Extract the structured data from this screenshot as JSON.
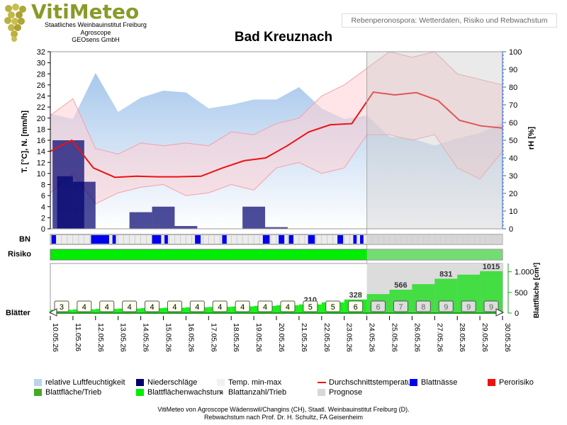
{
  "header": {
    "brand": "VitiMeteo",
    "institution_lines": [
      "Staatliches Weinbauinstitut Freiburg",
      "Agroscope",
      "GEOsens GmbH"
    ],
    "subtitle": "Rebenperonospora: Wetterdaten, Risiko und Rebwachstum",
    "title": "Bad Kreuznach"
  },
  "chart_data": {
    "type": "line",
    "title": "Bad Kreuznach",
    "dates": [
      "10.05.26",
      "11.05.26",
      "12.05.26",
      "13.05.26",
      "14.05.26",
      "15.05.26",
      "16.05.26",
      "17.05.26",
      "18.05.26",
      "19.05.26",
      "20.05.26",
      "21.05.26",
      "22.05.26",
      "23.05.26",
      "24.05.26",
      "25.05.26",
      "26.05.26",
      "27.05.26",
      "28.05.26",
      "29.05.26",
      "30.05.26"
    ],
    "forecast_from": "24.05.26",
    "ylabel_left": "T. [°C], N. [mm/h]",
    "ylabel_right": "rH [%]",
    "ylim_left": [
      0,
      32
    ],
    "yticks_left": [
      0,
      2,
      4,
      6,
      8,
      10,
      12,
      14,
      16,
      18,
      20,
      22,
      24,
      26,
      28,
      30,
      32
    ],
    "ylim_right": [
      0,
      100
    ],
    "yticks_right": [
      0,
      10,
      20,
      30,
      40,
      50,
      60,
      70,
      80,
      90,
      100
    ],
    "humidity": [
      65,
      62,
      88,
      66,
      74,
      78,
      77,
      68,
      70,
      73,
      73,
      80,
      68,
      62,
      64,
      52,
      51,
      47,
      51,
      54,
      60
    ],
    "precipitation": [
      {
        "from": 0.3,
        "to": 1.0,
        "value": 9.5
      },
      {
        "from": 0.1,
        "to": 1.5,
        "value": 16
      },
      {
        "from": 1.0,
        "to": 2.0,
        "value": 8.5
      },
      {
        "from": 3.5,
        "to": 4.5,
        "value": 3
      },
      {
        "from": 4.5,
        "to": 5.5,
        "value": 4
      },
      {
        "from": 5.5,
        "to": 6.5,
        "value": 0.5
      },
      {
        "from": 8.5,
        "to": 9.5,
        "value": 4
      },
      {
        "from": 9.5,
        "to": 10.5,
        "value": 0.3
      }
    ],
    "temp_mean": [
      14,
      16,
      11,
      9.3,
      9.5,
      9.4,
      9.4,
      9.5,
      11,
      12.3,
      12.8,
      15,
      17.5,
      18.8,
      19,
      24.7,
      24.2,
      24.6,
      23.2,
      19.6,
      18.6,
      18.2
    ],
    "temp_mean_x": [
      0,
      1,
      2,
      3,
      4,
      5,
      6,
      7,
      8,
      9,
      10,
      11,
      12,
      13,
      14,
      15,
      16,
      17,
      18,
      19,
      20,
      21
    ],
    "temp_max": [
      20.5,
      23.5,
      14.5,
      13.5,
      15.5,
      15,
      15.5,
      15,
      17.5,
      17,
      19,
      20,
      24,
      26,
      29,
      32,
      31,
      32,
      28,
      27,
      26
    ],
    "temp_min": [
      6.5,
      10,
      4.5,
      6.5,
      7.5,
      8,
      6,
      6.5,
      8,
      7,
      11,
      12,
      10,
      11,
      17,
      17,
      16,
      17,
      11,
      9,
      14
    ],
    "blattnaesse_segments": [
      [
        0.05,
        0.25
      ],
      [
        1.8,
        2.6
      ],
      [
        2.75,
        2.9
      ],
      [
        4.5,
        4.9
      ],
      [
        5.05,
        5.2
      ],
      [
        6.4,
        6.65
      ],
      [
        7.6,
        7.8
      ],
      [
        9.4,
        9.7
      ],
      [
        10.1,
        10.35
      ],
      [
        10.55,
        10.75
      ],
      [
        11.4,
        11.7
      ],
      [
        12.7,
        12.95
      ],
      [
        13.4,
        13.55
      ],
      [
        13.7,
        13.85
      ]
    ],
    "risiko_color": "#00ee00",
    "leaves_per_shoot": [
      3,
      4,
      4,
      4,
      4,
      4,
      4,
      4,
      4,
      4,
      4,
      5,
      5,
      6,
      6,
      7,
      8,
      9,
      9,
      9
    ],
    "leaf_area": [
      80,
      90,
      100,
      110,
      120,
      130,
      140,
      150,
      160,
      175,
      190,
      210,
      260,
      328,
      460,
      566,
      700,
      831,
      930,
      1015
    ],
    "leaf_area_labels": [
      {
        "index": 11,
        "text": "210"
      },
      {
        "index": 13,
        "text": "328"
      },
      {
        "index": 15,
        "text": "566"
      },
      {
        "index": 17,
        "text": "831"
      },
      {
        "index": 19,
        "text": "1015"
      }
    ],
    "ylabel_leaf": "Blattfläche [cm²]",
    "ylim_leaf": [
      0,
      1200
    ],
    "yticks_leaf": [
      {
        "value": 0,
        "label": "0"
      },
      {
        "value": 500,
        "label": "500"
      },
      {
        "value": 1000,
        "label": "1.000"
      }
    ],
    "row_labels": {
      "bn": "BN",
      "risiko": "Risiko",
      "blaetter": "Blätter"
    },
    "colors": {
      "humidity": "#a8c8ec",
      "precipitation": "#00006e",
      "temp_band": "#ffd0d4",
      "temp_line": "#ee1111",
      "blattnaesse": "#0000ee",
      "perorisiko": "#ee1111",
      "leaf_area": "#229922",
      "growth": "#00ee00",
      "prognose": "#d8d8d8"
    }
  },
  "legend": [
    {
      "label": "relative Luftfeuchtigkeit",
      "color": "#bcd4ee"
    },
    {
      "label": "Niederschläge",
      "color": "#00006e"
    },
    {
      "label": "Temp. min-max",
      "color": "#f2f2f2"
    },
    {
      "label": "Durchschnittstemperatur",
      "color": "#ee1111",
      "line": true
    },
    {
      "label": "Blattnässe",
      "color": "#0000ee"
    },
    {
      "label": "Perorisiko",
      "color": "#ee1111"
    },
    {
      "label": "Blattfläche/Trieb",
      "color": "#44aa22"
    },
    {
      "label": "Blattflächenwachstum",
      "color": "#00ee00"
    },
    {
      "label": "Blattanzahl/Trieb",
      "color": "#555555",
      "dot": true
    },
    {
      "label": "Prognose",
      "color": "#d8d8d8"
    }
  ],
  "footer": {
    "line1": "VitiMeteo von Agroscope Wädenswil/Changins (CH), Staatl. Weinbauinstitut Freiburg (D).",
    "line2": "Rebwachstum nach Prof. Dr. H. Schultz, FA Geisenheim"
  }
}
